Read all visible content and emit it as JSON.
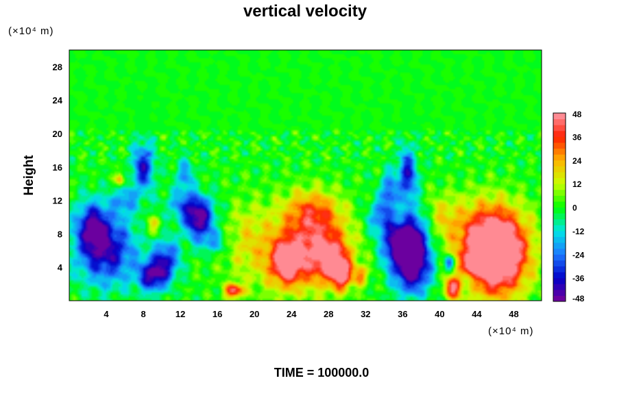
{
  "chart_data": {
    "type": "heatmap",
    "title": "vertical velocity",
    "ylabel": "Height",
    "xlabel": "",
    "x_unit": "(×10⁴ m)",
    "y_unit": "(×10⁴ m)",
    "xlim": [
      0,
      51
    ],
    "ylim": [
      0,
      30
    ],
    "x_ticks": [
      4,
      8,
      12,
      16,
      20,
      24,
      28,
      32,
      36,
      40,
      44,
      48
    ],
    "y_ticks": [
      4,
      8,
      12,
      16,
      20,
      24,
      28
    ],
    "colorbar": {
      "ticks": [
        48,
        36,
        24,
        12,
        0,
        -12,
        -24,
        -36,
        -48
      ],
      "range": [
        -48,
        48
      ],
      "stops": [
        {
          "value": -48,
          "color": "#7a0099"
        },
        {
          "value": -36,
          "color": "#0000c8"
        },
        {
          "value": -24,
          "color": "#1e78ff"
        },
        {
          "value": -12,
          "color": "#00e6e6"
        },
        {
          "value": 0,
          "color": "#00ff00"
        },
        {
          "value": 12,
          "color": "#c8ff00"
        },
        {
          "value": 24,
          "color": "#ffb400"
        },
        {
          "value": 36,
          "color": "#ff1e00"
        },
        {
          "value": 48,
          "color": "#ff9aa8"
        }
      ]
    },
    "features": [
      {
        "x": 4,
        "y": 6,
        "value": -40,
        "sx": 2.2,
        "sy": 2.8
      },
      {
        "x": 2.5,
        "y": 9,
        "value": -34,
        "sx": 1.2,
        "sy": 2.0
      },
      {
        "x": 9,
        "y": 3,
        "value": -42,
        "sx": 1.1,
        "sy": 1.3
      },
      {
        "x": 10.5,
        "y": 5,
        "value": -32,
        "sx": 1.0,
        "sy": 1.6
      },
      {
        "x": 8,
        "y": 16,
        "value": -36,
        "sx": 0.8,
        "sy": 2.0
      },
      {
        "x": 14,
        "y": 9.5,
        "value": -44,
        "sx": 1.1,
        "sy": 1.4
      },
      {
        "x": 13,
        "y": 11.5,
        "value": -26,
        "sx": 1.6,
        "sy": 1.2
      },
      {
        "x": 15.5,
        "y": 7,
        "value": -18,
        "sx": 1.2,
        "sy": 1.0
      },
      {
        "x": 12.5,
        "y": 15,
        "value": -20,
        "sx": 0.7,
        "sy": 1.4
      },
      {
        "x": 6,
        "y": 12,
        "value": -20,
        "sx": 1.0,
        "sy": 1.2
      },
      {
        "x": 5.5,
        "y": 14.5,
        "value": 26,
        "sx": 0.35,
        "sy": 0.6
      },
      {
        "x": 9,
        "y": 9,
        "value": 16,
        "sx": 0.6,
        "sy": 0.8
      },
      {
        "x": 17.8,
        "y": 1.2,
        "value": 42,
        "sx": 0.7,
        "sy": 0.6
      },
      {
        "x": 24,
        "y": 6,
        "value": 22,
        "sx": 4.0,
        "sy": 3.5
      },
      {
        "x": 23.5,
        "y": 4.5,
        "value": 38,
        "sx": 1.2,
        "sy": 1.8
      },
      {
        "x": 27,
        "y": 7,
        "value": 26,
        "sx": 2.2,
        "sy": 3.2
      },
      {
        "x": 28.5,
        "y": 4.5,
        "value": 30,
        "sx": 1.2,
        "sy": 1.6
      },
      {
        "x": 29.5,
        "y": 3,
        "value": 34,
        "sx": 0.7,
        "sy": 1.2
      },
      {
        "x": 26,
        "y": 11,
        "value": 18,
        "sx": 2.0,
        "sy": 1.6
      },
      {
        "x": 31.5,
        "y": 3,
        "value": 24,
        "sx": 0.5,
        "sy": 0.8
      },
      {
        "x": 37,
        "y": 4,
        "value": -50,
        "sx": 1.4,
        "sy": 2.2
      },
      {
        "x": 35.5,
        "y": 7,
        "value": -46,
        "sx": 1.2,
        "sy": 1.8
      },
      {
        "x": 37.5,
        "y": 8,
        "value": -30,
        "sx": 1.2,
        "sy": 2.4
      },
      {
        "x": 36.5,
        "y": 15,
        "value": -36,
        "sx": 0.7,
        "sy": 2.2
      },
      {
        "x": 34.5,
        "y": 13,
        "value": -28,
        "sx": 0.6,
        "sy": 1.6
      },
      {
        "x": 33.5,
        "y": 10,
        "value": -22,
        "sx": 1.0,
        "sy": 1.4
      },
      {
        "x": 46,
        "y": 5,
        "value": 60,
        "sx": 2.4,
        "sy": 3.2
      },
      {
        "x": 45.5,
        "y": 8,
        "value": 30,
        "sx": 2.6,
        "sy": 3.0
      },
      {
        "x": 41.5,
        "y": 1.5,
        "value": 40,
        "sx": 0.7,
        "sy": 0.9
      },
      {
        "x": 43.5,
        "y": 4.5,
        "value": 36,
        "sx": 0.5,
        "sy": 0.6
      },
      {
        "x": 41,
        "y": 4.5,
        "value": -34,
        "sx": 0.4,
        "sy": 0.6
      },
      {
        "x": 43,
        "y": 2,
        "value": -14,
        "sx": 0.6,
        "sy": 0.8
      },
      {
        "x": 40,
        "y": 10,
        "value": 16,
        "sx": 1.6,
        "sy": 2.0
      },
      {
        "x": 19,
        "y": 8,
        "value": 8,
        "sx": 1.5,
        "sy": 3.0
      }
    ],
    "grid": false
  },
  "footer": {
    "time_label": "TIME = 100000.0"
  }
}
